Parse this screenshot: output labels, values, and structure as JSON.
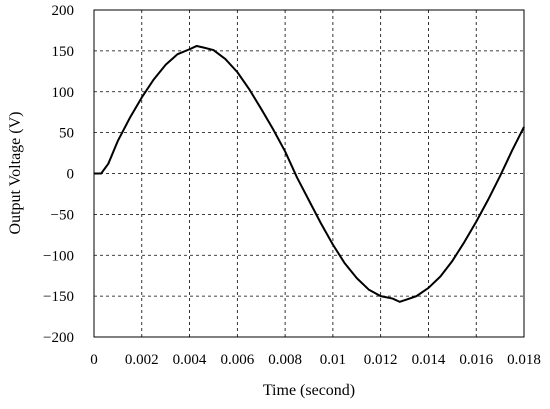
{
  "chart_data": {
    "type": "line",
    "title": "",
    "xlabel": "Time (second)",
    "ylabel": "Output Voltage (V)",
    "xlim": [
      0,
      0.018
    ],
    "ylim": [
      -200,
      200
    ],
    "x_ticks": [
      0,
      0.002,
      0.004,
      0.006,
      0.008,
      0.01,
      0.012,
      0.014,
      0.016,
      0.018
    ],
    "x_tick_labels": [
      "0",
      "0.002",
      "0.004",
      "0.006",
      "0.008",
      "0.01",
      "0.012",
      "0.014",
      "0.016",
      "0.018"
    ],
    "y_ticks": [
      -200,
      -150,
      -100,
      -50,
      0,
      50,
      100,
      150,
      200
    ],
    "y_tick_labels": [
      "−200",
      "−150",
      "−100",
      "−50",
      "0",
      "50",
      "100",
      "150",
      "200"
    ],
    "grid": true,
    "line_color": "#000000",
    "series": [
      {
        "x": [
          0,
          0.0003,
          0.0006,
          0.001,
          0.0015,
          0.002,
          0.0025,
          0.003,
          0.0035,
          0.004,
          0.0043,
          0.0046,
          0.005,
          0.0055,
          0.006,
          0.0065,
          0.007,
          0.0075,
          0.008,
          0.0085,
          0.009,
          0.0095,
          0.01,
          0.0105,
          0.011,
          0.0115,
          0.012,
          0.0125,
          0.0128,
          0.0131,
          0.0135,
          0.014,
          0.0145,
          0.015,
          0.0155,
          0.016,
          0.0165,
          0.017,
          0.0175,
          0.018
        ],
        "y": [
          0,
          0,
          12,
          40,
          68,
          93,
          115,
          133,
          146,
          152,
          156,
          154,
          151,
          140,
          124,
          103,
          79,
          54,
          27,
          -5,
          -33,
          -61,
          -87,
          -110,
          -128,
          -142,
          -150,
          -153,
          -157,
          -154,
          -150,
          -140,
          -126,
          -107,
          -84,
          -59,
          -32,
          -3,
          28,
          57
        ]
      }
    ]
  }
}
